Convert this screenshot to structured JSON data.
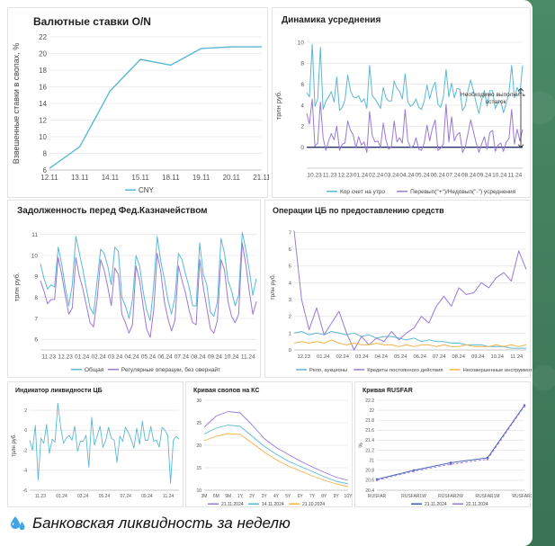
{
  "caption": {
    "text": "Банковская ликвидность за неделю",
    "icon": "water-drops-icon"
  },
  "colors": {
    "blue": "#5bb8d4",
    "purple": "#9a79d6",
    "orange": "#f2b34a",
    "navy": "#23306e",
    "grid": "#e6e6e6"
  },
  "chart_data": [
    {
      "type": "line",
      "title": "Валютные ставки O/N",
      "ylabel": "Взвешенные ставки в свопах, %",
      "categories": [
        "12.11",
        "13.11",
        "14.11",
        "15.11",
        "18.11",
        "19.11",
        "20.11",
        "21.11"
      ],
      "ylim": [
        6,
        22
      ],
      "yticks": [
        6,
        8,
        10,
        12,
        14,
        16,
        18,
        20,
        22
      ],
      "series": [
        {
          "name": "CNY",
          "values": [
            6.2,
            8.8,
            15.5,
            19.3,
            18.6,
            20.6,
            20.8,
            20.8
          ]
        }
      ],
      "legend": "bottom",
      "grid": true
    },
    {
      "type": "line",
      "title": "Динамика усреднения",
      "ylabel": "трлн руб.",
      "xtick_labels": [
        "10.23",
        "11.23",
        "12.23",
        "01.24",
        "02.24",
        "03.24",
        "04.24",
        "05.24",
        "06.24",
        "07.24",
        "08.24",
        "09.24",
        "10.24",
        "11.24"
      ],
      "ylim": [
        -2,
        10
      ],
      "yticks": [
        0,
        2,
        4,
        6,
        8,
        10
      ],
      "series": [
        {
          "name": "Кор счет на утро",
          "values": [
            5.2,
            4.8,
            9.8,
            3.9,
            4.6,
            9.5,
            3.6,
            4.4,
            4.8,
            5.3,
            4.3,
            6.7,
            3.5,
            3.8,
            4.5,
            6.9,
            5.4,
            4.8,
            4.7,
            4.9,
            4.3,
            4.6,
            3.7,
            7.8,
            4.9,
            4.6,
            4.2,
            3.7,
            5.7,
            4.7,
            4.4,
            4.4,
            6.3,
            5.6,
            5.3,
            4.6,
            7.0,
            4.3,
            3.9,
            4.1,
            4.6,
            3.8,
            3.6,
            4.4,
            5.9,
            4.6,
            5.6,
            6.2,
            4.1,
            3.8,
            4.8,
            7.4,
            4.8,
            6.1,
            4.7,
            5.6,
            5.5,
            3.5,
            3.9,
            5.4,
            6.4,
            5.4,
            4.2,
            3.2,
            4.5,
            5.4,
            3.9,
            5.4,
            5.4,
            3.7,
            4.3,
            4.4,
            3.3,
            4.2,
            5.2,
            7.8,
            4.7,
            5.7,
            5.1,
            7.8
          ]
        },
        {
          "name": "Перевып(\"+\")/Недовып(\"-\") усреднения",
          "values": [
            3.2,
            2.2,
            4.6,
            0.1,
            0.4,
            4.3,
            0.9,
            -0.3,
            0.6,
            1.3,
            0.7,
            2.0,
            -0.3,
            0.3,
            0.4,
            2.5,
            1.6,
            1.2,
            -0.1,
            1.0,
            0.2,
            0.5,
            -0.5,
            3.4,
            1.1,
            0.5,
            0.6,
            0.0,
            2.3,
            0.7,
            -0.2,
            0.1,
            2.5,
            0.5,
            0.9,
            0.4,
            3.6,
            0.6,
            0.0,
            0.1,
            0.9,
            -0.2,
            -0.3,
            0.4,
            2.1,
            0.6,
            1.8,
            2.6,
            -0.3,
            -0.1,
            0.3,
            4.1,
            0.5,
            2.9,
            0.6,
            1.2,
            1.4,
            -0.5,
            0.0,
            1.3,
            2.6,
            1.5,
            0.4,
            -0.5,
            0.3,
            1.0,
            -0.2,
            1.4,
            1.6,
            -0.4,
            0.2,
            0.4,
            -0.4,
            0.5,
            0.8,
            3.6,
            0.3,
            1.7,
            0.6,
            1.7
          ]
        }
      ],
      "hline": 0,
      "annotation": "Необходимо выполнить остаток",
      "legend": "bottom",
      "grid": true
    },
    {
      "type": "line",
      "title": "Задолженность перед Фед.Казначейством",
      "ylabel": "трлн руб.",
      "xtick_labels": [
        "11.23",
        "12.23",
        "01.24",
        "02.24",
        "03.24",
        "04.24",
        "05.24",
        "06.24",
        "07.24",
        "08.24",
        "09.24",
        "10.24",
        "11.24"
      ],
      "ylim": [
        5.5,
        11.5
      ],
      "yticks": [
        6,
        7,
        8,
        9,
        10,
        11
      ],
      "series": [
        {
          "name": "Общая",
          "values": [
            9.6,
            8.9,
            8.4,
            8.6,
            8.5,
            10.4,
            9.6,
            8.5,
            7.6,
            8.6,
            10.9,
            10.1,
            9.3,
            8.4,
            7.5,
            7.2,
            8.8,
            10.3,
            10.1,
            9.5,
            8.6,
            10.4,
            10.2,
            8.0,
            7.6,
            7.0,
            7.9,
            10.0,
            9.5,
            8.3,
            7.4,
            6.9,
            8.6,
            10.9,
            9.7,
            8.9,
            7.9,
            7.2,
            8.0,
            10.1,
            9.8,
            9.1,
            8.5,
            7.6,
            7.6,
            10.6,
            9.1,
            8.6,
            7.3,
            7.1,
            7.8,
            10.8,
            10.1,
            8.8,
            8.3,
            7.6,
            8.1,
            11.1,
            10.3,
            9.3,
            8.1,
            8.9
          ]
        },
        {
          "name": "Регулярные операции, без овернайт",
          "values": [
            8.8,
            8.3,
            7.7,
            7.9,
            7.9,
            9.9,
            9.1,
            8.1,
            7.2,
            7.5,
            9.9,
            9.0,
            8.4,
            7.6,
            6.8,
            6.6,
            7.9,
            9.8,
            9.3,
            8.5,
            7.6,
            9.4,
            9.1,
            7.2,
            6.8,
            6.3,
            6.7,
            9.5,
            8.8,
            7.6,
            6.5,
            6.1,
            7.4,
            10.1,
            9.2,
            7.8,
            7.0,
            6.4,
            6.9,
            9.5,
            8.8,
            8.2,
            7.4,
            6.8,
            6.7,
            9.8,
            8.5,
            7.5,
            6.5,
            6.3,
            6.9,
            9.8,
            9.3,
            7.8,
            7.1,
            6.8,
            7.2,
            10.6,
            9.6,
            8.3,
            7.2,
            7.8
          ]
        }
      ],
      "legend": "bottom",
      "grid": true
    },
    {
      "type": "line",
      "title": "Операции ЦБ по предоставлению средств",
      "ylabel": "трлн руб.",
      "xtick_labels": [
        "12.23",
        "01.24",
        "02.24",
        "03.24",
        "04.24",
        "05.24",
        "06.24",
        "07.24",
        "08.24",
        "09.24",
        "10.24",
        "11.24"
      ],
      "ylim": [
        0,
        7.5
      ],
      "yticks": [
        0,
        1,
        2,
        3,
        4,
        5,
        6,
        7
      ],
      "series": [
        {
          "name": "Репо, аукционы",
          "values": [
            1.0,
            1.1,
            0.9,
            1.0,
            0.9,
            1.1,
            1.0,
            0.9,
            1.0,
            0.8,
            0.9,
            0.7,
            0.8,
            0.8,
            0.7,
            0.6,
            0.7,
            0.5,
            0.6,
            0.5,
            0.5,
            0.4,
            0.4,
            0.3,
            0.3,
            0.3,
            0.2,
            0.2,
            0.2,
            0.1,
            0.1,
            0.1
          ]
        },
        {
          "name": "Кредиты постоянного действия",
          "values": [
            7.1,
            3.0,
            1.2,
            2.5,
            0.9,
            1.6,
            2.3,
            1.0,
            0.0,
            0.8,
            0.3,
            0.7,
            0.5,
            1.1,
            0.6,
            1.0,
            1.3,
            2.0,
            1.6,
            2.6,
            3.2,
            2.6,
            3.7,
            3.3,
            3.4,
            4.0,
            3.7,
            4.3,
            4.6,
            4.1,
            5.9,
            4.8
          ]
        },
        {
          "name": "Несовершенные инструменты",
          "values": [
            0.4,
            0.5,
            0.4,
            0.5,
            0.4,
            0.6,
            0.4,
            0.3,
            0.4,
            0.3,
            0.3,
            0.4,
            0.3,
            0.3,
            0.2,
            0.3,
            0.2,
            0.3,
            0.3,
            0.2,
            0.3,
            0.2,
            0.2,
            0.3,
            0.2,
            0.2,
            0.2,
            0.3,
            0.2,
            0.3,
            0.2,
            0.3
          ]
        }
      ],
      "legend": "bottom",
      "grid": true
    },
    {
      "type": "line",
      "title": "Индикатор ликвидности ЦБ",
      "ylabel": "трлн руб.",
      "xtick_labels": [
        "11.23",
        "01.24",
        "03.24",
        "05.24",
        "07.24",
        "09.24",
        "11.24"
      ],
      "ylim": [
        -6,
        3
      ],
      "yticks": [
        -6,
        -4,
        -2,
        0,
        2
      ],
      "series": [
        {
          "name": "",
          "values": [
            -1.0,
            -2.0,
            0.5,
            -5.0,
            -0.8,
            -1.3,
            0.6,
            -2.3,
            -0.9,
            -1.2,
            2.7,
            0.3,
            -1.3,
            -0.8,
            -0.5,
            -1.0,
            0.4,
            -2.1,
            -1.1,
            -1.1,
            -0.5,
            -3.7,
            1.3,
            -1.5,
            -0.5,
            0.4,
            -1.7,
            -1.0,
            0.3,
            -0.8,
            -1.0,
            -3.2,
            -0.6,
            -1.1,
            0.3,
            -0.2,
            -0.9,
            -1.8,
            0.2,
            -1.4,
            0.9,
            -1.0,
            -1.0,
            0.4,
            -1.1,
            -1.0,
            -1.7,
            0.3,
            0.0,
            -0.5,
            -5.3,
            -1.0,
            -0.6,
            -0.9
          ]
        }
      ],
      "grid": true
    },
    {
      "type": "line",
      "title": "Кривая свопов на КС",
      "categories": [
        "3M",
        "6M",
        "9M",
        "1Y",
        "2Y",
        "3Y",
        "4Y",
        "5Y",
        "6Y",
        "7Y",
        "8Y",
        "9Y",
        "10Y"
      ],
      "ylim": [
        10,
        30
      ],
      "yticks": [
        10,
        15,
        20,
        25,
        30
      ],
      "series": [
        {
          "name": "21.11.2024",
          "values": [
            24.0,
            26.5,
            27.5,
            27.2,
            24.5,
            21.5,
            19.5,
            18.0,
            16.5,
            15.2,
            14.0,
            12.9,
            12.2
          ]
        },
        {
          "name": "14.11.2024",
          "values": [
            22.5,
            23.8,
            24.5,
            24.2,
            22.0,
            19.8,
            18.0,
            16.5,
            15.3,
            14.2,
            13.0,
            12.0,
            11.4
          ]
        },
        {
          "name": "21.10.2024",
          "values": [
            21.0,
            22.0,
            22.6,
            22.4,
            20.5,
            18.5,
            16.8,
            15.4,
            14.3,
            13.2,
            12.2,
            11.4,
            10.8
          ]
        }
      ],
      "legend": "bottom",
      "grid": true
    },
    {
      "type": "line",
      "title": "Кривая RUSFAR",
      "ylabel": "%",
      "categories": [
        "RUSFAR",
        "RUSFAR1W",
        "RUSFAR2W",
        "RUSFAR1M",
        "RUSFAR3M"
      ],
      "ylim": [
        20.4,
        22.2
      ],
      "yticks": [
        20.4,
        20.6,
        20.8,
        21.0,
        21.2,
        21.4,
        21.6,
        21.8,
        22.0,
        22.2
      ],
      "series": [
        {
          "name": "21.11.2024",
          "values": [
            20.62,
            20.8,
            20.95,
            21.05,
            22.1
          ]
        },
        {
          "name": "22.11.2024",
          "values": [
            20.6,
            20.78,
            20.92,
            21.02,
            22.08
          ]
        }
      ],
      "legend": "bottom",
      "grid": true
    }
  ]
}
